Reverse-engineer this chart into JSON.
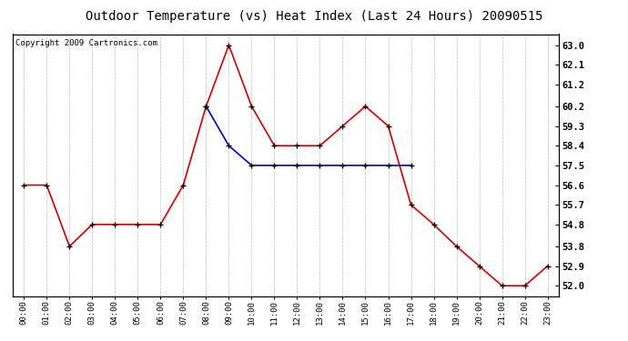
{
  "title": "Outdoor Temperature (vs) Heat Index (Last 24 Hours) 20090515",
  "copyright": "Copyright 2009 Cartronics.com",
  "x_labels": [
    "00:00",
    "01:00",
    "02:00",
    "03:00",
    "04:00",
    "05:00",
    "06:00",
    "07:00",
    "08:00",
    "09:00",
    "10:00",
    "11:00",
    "12:00",
    "13:00",
    "14:00",
    "15:00",
    "16:00",
    "17:00",
    "18:00",
    "19:00",
    "20:00",
    "21:00",
    "22:00",
    "23:00"
  ],
  "red_data": [
    56.6,
    56.6,
    53.8,
    54.8,
    54.8,
    54.8,
    54.8,
    56.6,
    60.2,
    63.0,
    60.2,
    58.4,
    58.4,
    58.4,
    59.3,
    60.2,
    59.3,
    55.7,
    54.8,
    53.8,
    52.9,
    52.0,
    52.0,
    52.9
  ],
  "blue_data": [
    null,
    null,
    null,
    null,
    null,
    null,
    null,
    null,
    60.2,
    58.4,
    57.5,
    57.5,
    57.5,
    57.5,
    57.5,
    57.5,
    57.5,
    57.5,
    null,
    null,
    null,
    null,
    null,
    null
  ],
  "y_ticks": [
    52.0,
    52.9,
    53.8,
    54.8,
    55.7,
    56.6,
    57.5,
    58.4,
    59.3,
    60.2,
    61.2,
    62.1,
    63.0
  ],
  "ylim": [
    51.5,
    63.5
  ],
  "red_color": "#cc0000",
  "blue_color": "#0000cc",
  "marker_color": "#000000",
  "bg_color": "#ffffff",
  "plot_bg_color": "#ffffff",
  "grid_color": "#bbbbbb",
  "title_fontsize": 10,
  "copyright_fontsize": 6.5
}
